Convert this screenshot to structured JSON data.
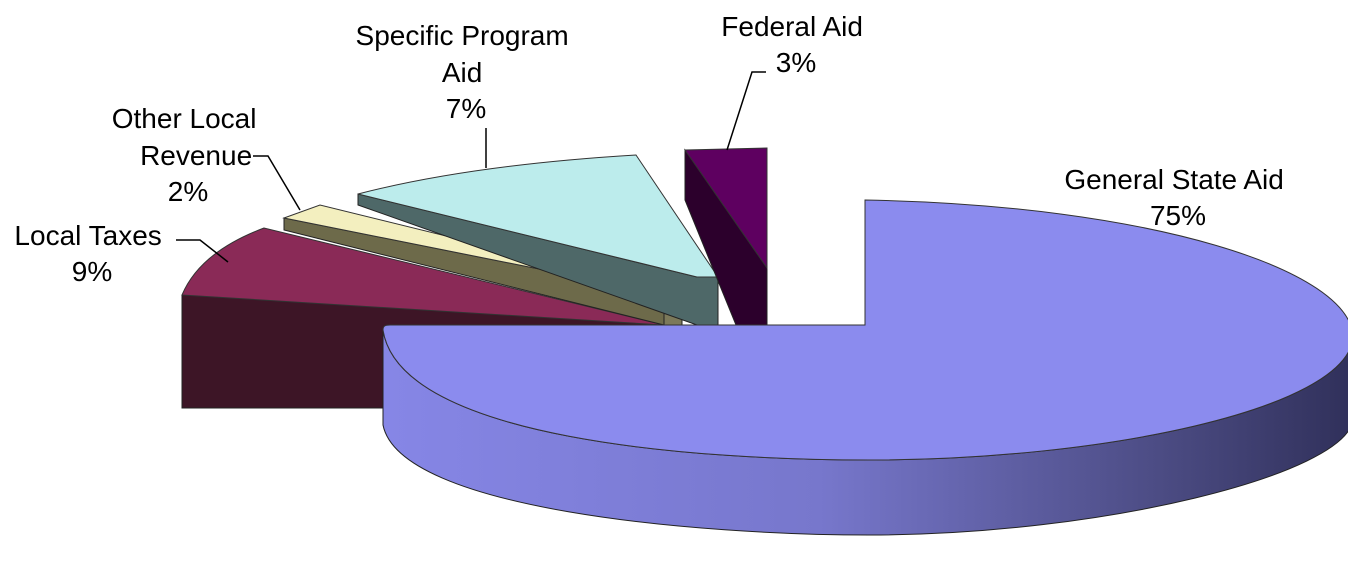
{
  "chart_data": {
    "type": "pie",
    "title": "",
    "three_d": true,
    "exploded": true,
    "slices": [
      {
        "label": "General State Aid",
        "value": 75,
        "display": "75%",
        "color": "#8b8bee",
        "side_color": "#5e5eb0"
      },
      {
        "label": "Local Taxes",
        "value": 9,
        "display": "9%",
        "color": "#8a2a57",
        "side_color": "#3d1526"
      },
      {
        "label": "Other Local Revenue",
        "value": 2,
        "display": "2%",
        "color": "#f3efbf",
        "side_color": "#6d6a4a"
      },
      {
        "label": "Specific Program Aid",
        "value": 7,
        "display": "7%",
        "color": "#bcecec",
        "side_color": "#4e6868"
      },
      {
        "label": "Federal Aid",
        "value": 3,
        "display": "3%",
        "color": "#5e0060",
        "side_color": "#2c002c"
      }
    ]
  },
  "labels": {
    "general_state_aid": {
      "line1": "General State Aid",
      "pct": "75%"
    },
    "local_taxes": {
      "line1": "Local Taxes",
      "pct": "9%"
    },
    "other_local_revenue": {
      "line1": "Other Local",
      "line2": "Revenue",
      "pct": "2%"
    },
    "specific_program_aid": {
      "line1": "Specific Program",
      "line2": "Aid",
      "pct": "7%"
    },
    "federal_aid": {
      "line1": "Federal Aid",
      "pct": "3%"
    }
  }
}
